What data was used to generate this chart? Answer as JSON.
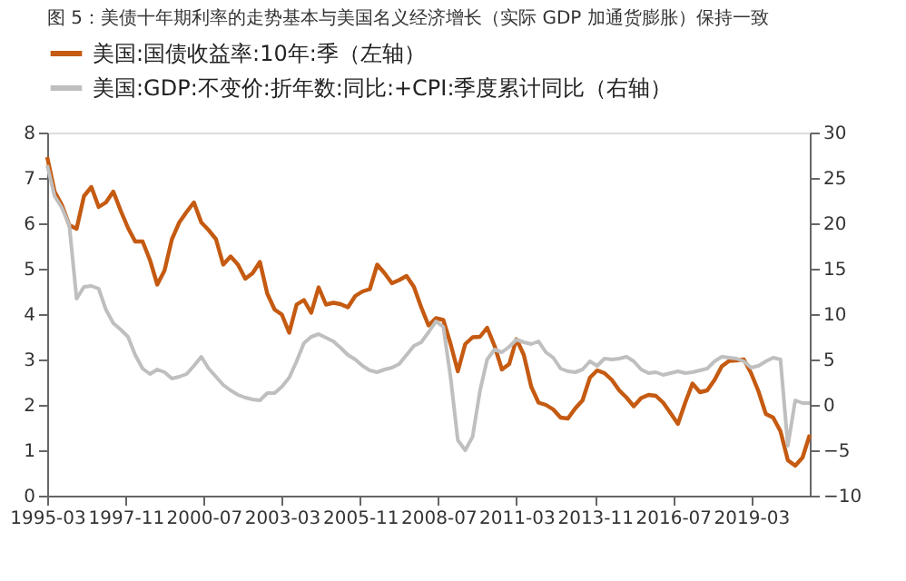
{
  "chart_data": {
    "type": "line",
    "title": "图 5：美债十年期利率的走势基本与美国名义经济增长（实际 GDP 加通货膨胀）保持一致",
    "x": [
      "1995-03",
      "1995-06",
      "1995-09",
      "1995-12",
      "1996-03",
      "1996-06",
      "1996-09",
      "1996-12",
      "1997-03",
      "1997-06",
      "1997-09",
      "1997-12",
      "1998-03",
      "1998-06",
      "1998-09",
      "1998-12",
      "1999-03",
      "1999-06",
      "1999-09",
      "1999-12",
      "2000-03",
      "2000-06",
      "2000-09",
      "2000-12",
      "2001-03",
      "2001-06",
      "2001-09",
      "2001-12",
      "2002-03",
      "2002-06",
      "2002-09",
      "2002-12",
      "2003-03",
      "2003-06",
      "2003-09",
      "2003-12",
      "2004-03",
      "2004-06",
      "2004-09",
      "2004-12",
      "2005-03",
      "2005-06",
      "2005-09",
      "2005-12",
      "2006-03",
      "2006-06",
      "2006-09",
      "2006-12",
      "2007-03",
      "2007-06",
      "2007-09",
      "2007-12",
      "2008-03",
      "2008-06",
      "2008-09",
      "2008-12",
      "2009-03",
      "2009-06",
      "2009-09",
      "2009-12",
      "2010-03",
      "2010-06",
      "2010-09",
      "2010-12",
      "2011-03",
      "2011-06",
      "2011-09",
      "2011-12",
      "2012-03",
      "2012-06",
      "2012-09",
      "2012-12",
      "2013-03",
      "2013-06",
      "2013-09",
      "2013-12",
      "2014-03",
      "2014-06",
      "2014-09",
      "2014-12",
      "2015-03",
      "2015-06",
      "2015-09",
      "2015-12",
      "2016-03",
      "2016-06",
      "2016-09",
      "2016-12",
      "2017-03",
      "2017-06",
      "2017-09",
      "2017-12",
      "2018-03",
      "2018-06",
      "2018-09",
      "2018-12",
      "2019-03",
      "2019-06",
      "2019-09",
      "2019-12",
      "2020-03",
      "2020-06",
      "2020-09",
      "2020-12",
      "2021-03"
    ],
    "series": [
      {
        "name": "美国:国债收益率:10年:季（左轴）",
        "color": "#c55a11",
        "values": [
          7.46,
          6.7,
          6.4,
          5.96,
          5.88,
          6.6,
          6.8,
          6.36,
          6.46,
          6.7,
          6.28,
          5.9,
          5.6,
          5.6,
          5.19,
          4.65,
          4.96,
          5.65,
          6.02,
          6.25,
          6.46,
          6.02,
          5.85,
          5.65,
          5.09,
          5.27,
          5.09,
          4.78,
          4.9,
          5.15,
          4.45,
          4.1,
          3.99,
          3.59,
          4.21,
          4.31,
          4.03,
          4.59,
          4.21,
          4.25,
          4.22,
          4.15,
          4.4,
          4.5,
          4.55,
          5.09,
          4.9,
          4.68,
          4.75,
          4.84,
          4.6,
          4.15,
          3.75,
          3.91,
          3.87,
          3.34,
          2.74,
          3.34,
          3.49,
          3.5,
          3.7,
          3.3,
          2.78,
          2.9,
          3.45,
          3.1,
          2.4,
          2.05,
          2.0,
          1.9,
          1.72,
          1.7,
          1.92,
          2.1,
          2.6,
          2.76,
          2.7,
          2.55,
          2.32,
          2.16,
          1.97,
          2.15,
          2.22,
          2.2,
          2.05,
          1.82,
          1.58,
          2.05,
          2.47,
          2.28,
          2.32,
          2.55,
          2.85,
          2.97,
          2.98,
          3.0,
          2.7,
          2.3,
          1.8,
          1.72,
          1.42,
          0.78,
          0.66,
          0.84,
          1.34
        ]
      },
      {
        "name": "美国:GDP:不变价:折年数:同比:+CPI:季度累计同比（右轴）",
        "color": "#bfbfbf",
        "axis": "y2",
        "values": [
          26.4,
          23.0,
          21.7,
          19.8,
          11.7,
          13.0,
          13.1,
          12.8,
          10.5,
          9.0,
          8.3,
          7.5,
          5.5,
          4.0,
          3.4,
          3.9,
          3.6,
          2.9,
          3.1,
          3.4,
          4.3,
          5.3,
          4.0,
          3.1,
          2.2,
          1.6,
          1.1,
          0.8,
          0.6,
          0.5,
          1.3,
          1.3,
          2.0,
          3.0,
          4.8,
          6.8,
          7.5,
          7.8,
          7.4,
          7.0,
          6.3,
          5.5,
          5.0,
          4.3,
          3.8,
          3.6,
          3.9,
          4.1,
          4.5,
          5.5,
          6.5,
          6.9,
          8.0,
          9.2,
          8.6,
          3.0,
          -3.9,
          -5.0,
          -3.5,
          1.5,
          5.0,
          6.1,
          5.8,
          6.4,
          7.2,
          6.9,
          6.7,
          7.0,
          5.8,
          5.2,
          4.0,
          3.7,
          3.6,
          3.9,
          4.8,
          4.3,
          5.1,
          5.0,
          5.1,
          5.3,
          4.8,
          3.9,
          3.5,
          3.6,
          3.3,
          3.5,
          3.7,
          3.5,
          3.6,
          3.8,
          4.0,
          4.8,
          5.3,
          5.2,
          5.1,
          4.8,
          4.1,
          4.3,
          4.8,
          5.2,
          5.0,
          -4.5,
          0.5,
          0.2,
          0.2
        ]
      }
    ],
    "xlim": [
      "1995-03",
      "2021-03"
    ],
    "xticks": [
      "1995-03",
      "1997-11",
      "2000-07",
      "2003-03",
      "2005-11",
      "2008-07",
      "2011-03",
      "2013-11",
      "2016-07",
      "2019-03"
    ],
    "ylim": [
      0,
      8
    ],
    "yticks": [
      0,
      1,
      2,
      3,
      4,
      5,
      6,
      7,
      8
    ],
    "y2lim": [
      -10,
      30
    ],
    "y2ticks": [
      -10,
      -5,
      0,
      5,
      10,
      15,
      20,
      25,
      30
    ],
    "grid": false,
    "legend": "top",
    "marker": "none",
    "line_style": "solid"
  }
}
